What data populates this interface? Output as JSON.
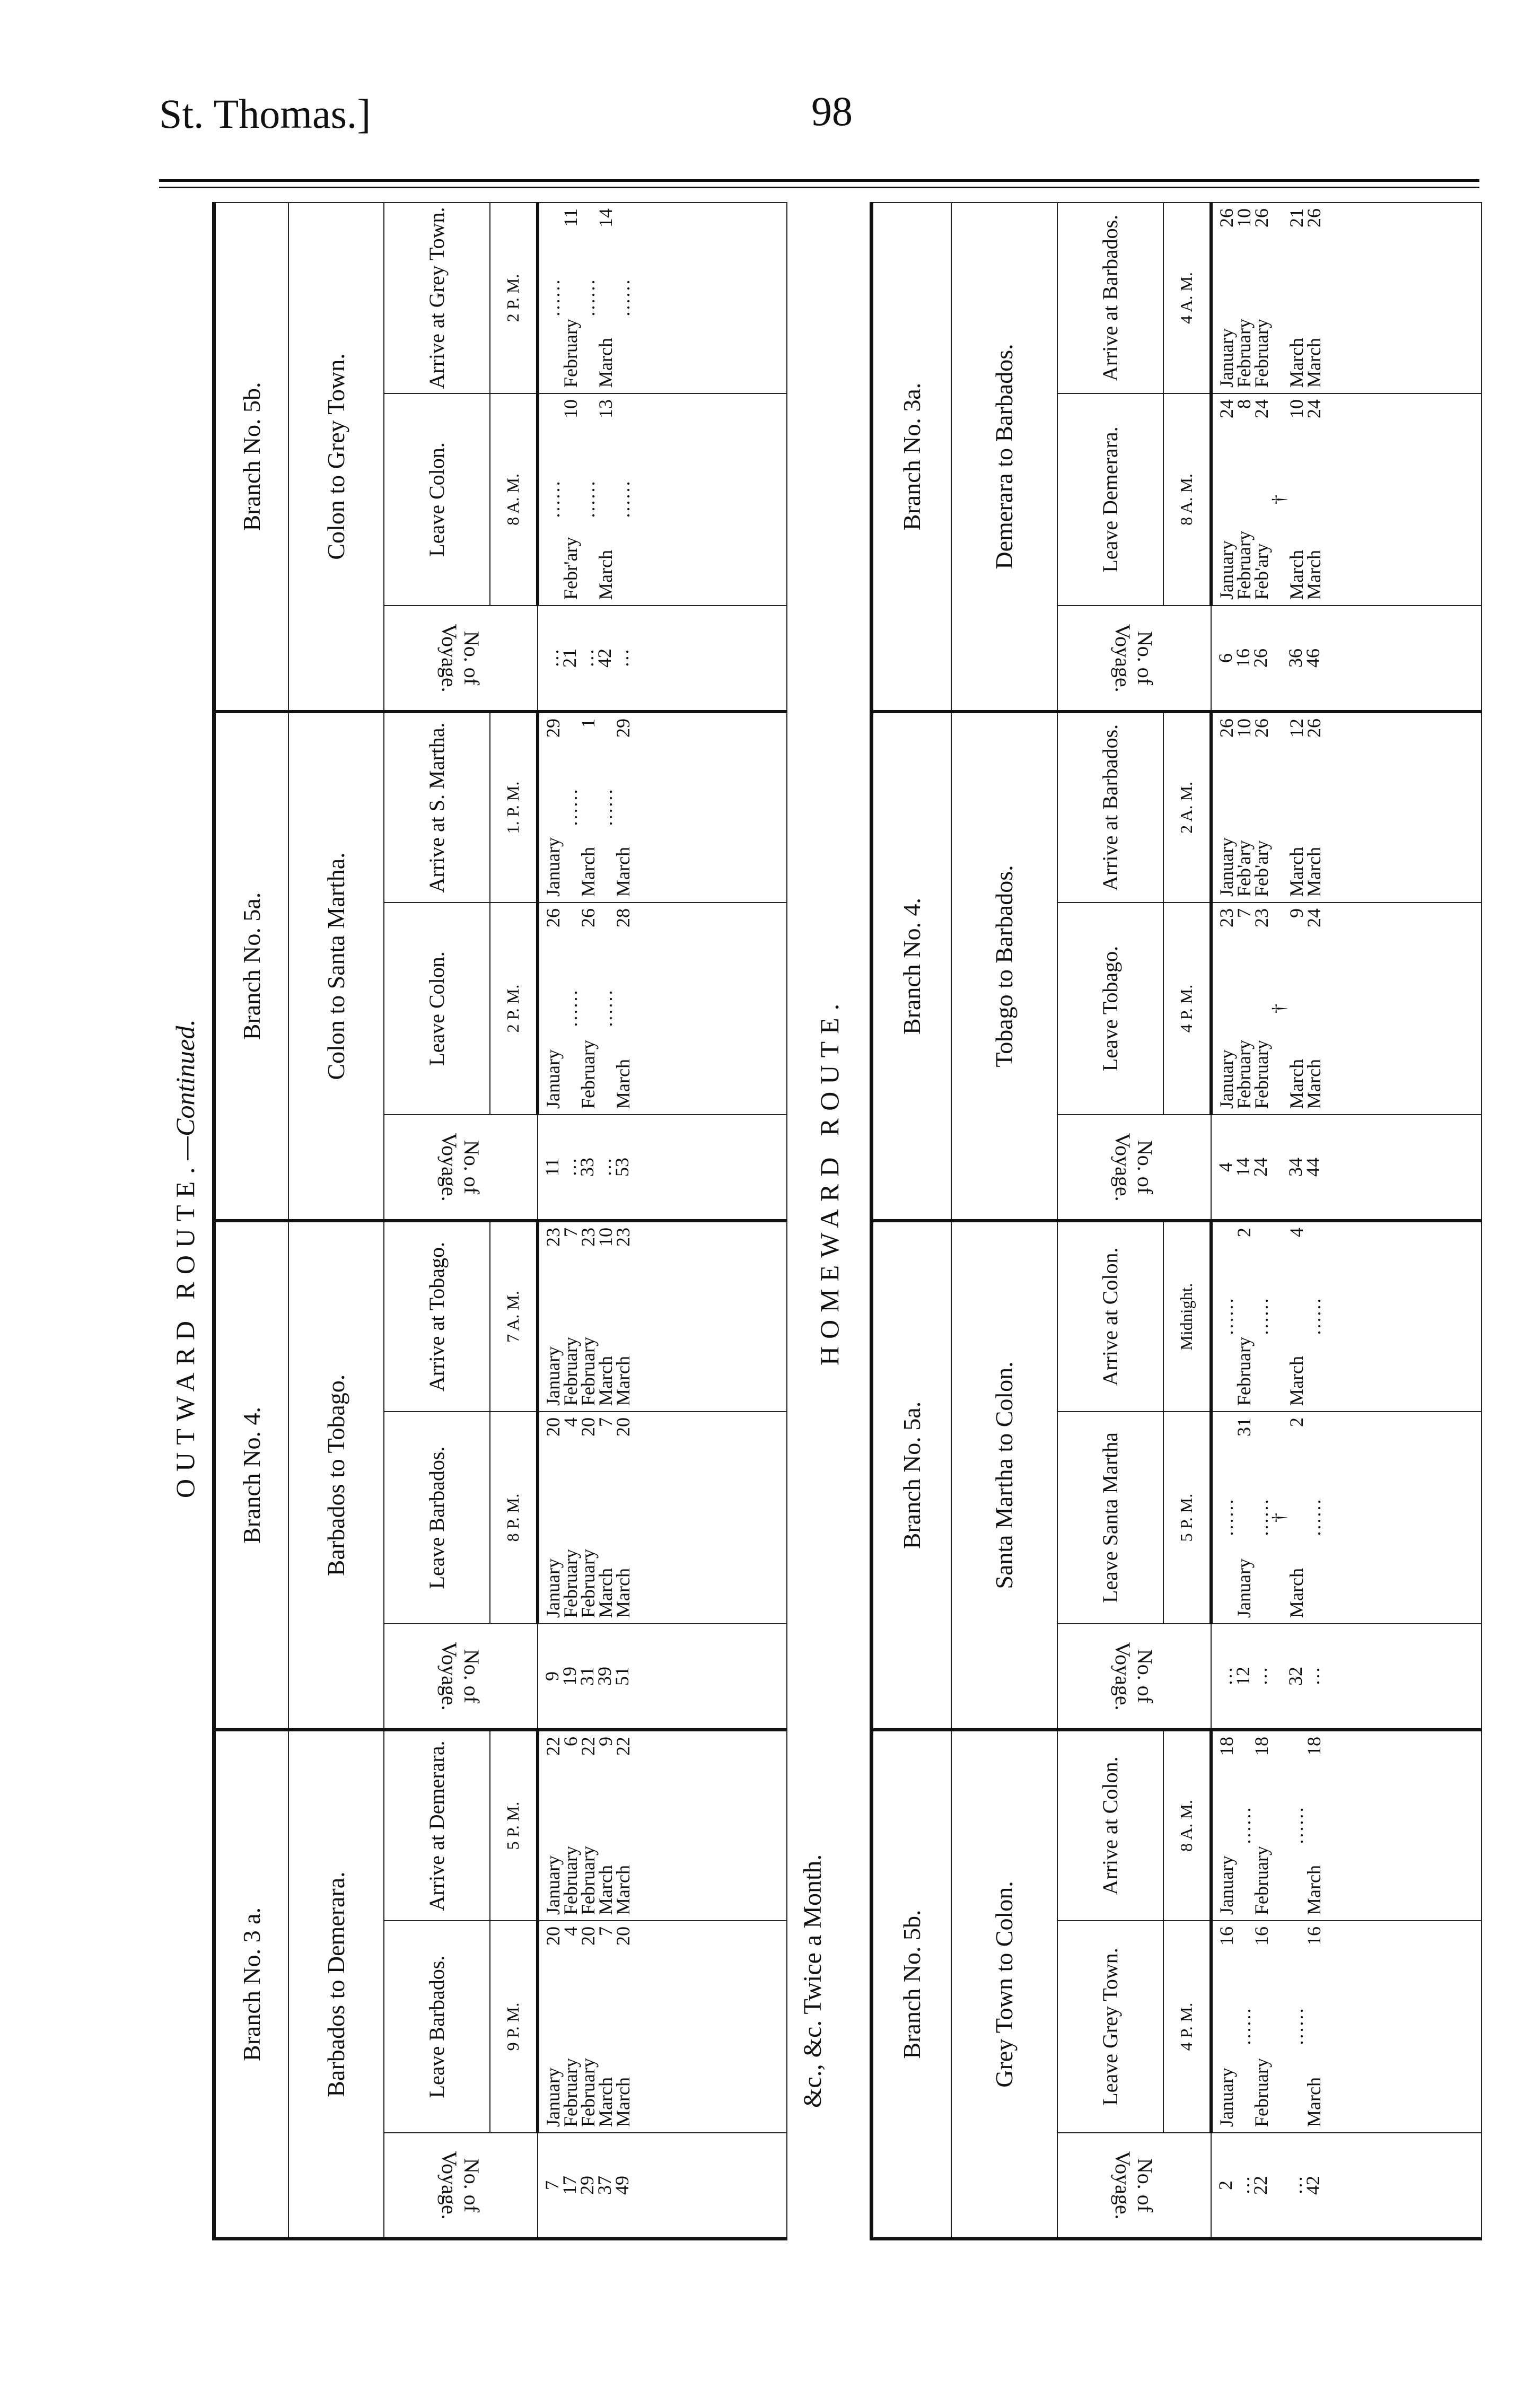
{
  "header": {
    "running_title": "St. Thomas.]",
    "page_number": "98"
  },
  "outward": {
    "caption": "OUTWARD ROUTE.",
    "caption_suffix": "—Continued.",
    "footnote": "&c., &c. Twice a Month.",
    "voyage_label": "No. of Voyage.",
    "branches": [
      {
        "branch": "Branch No. 3 a.",
        "route": "Barbados to Demerara.",
        "leave_label": "Leave Barbados.",
        "arrive_label": "Arrive at Demerara.",
        "leave_time": "9 P. M.",
        "arrive_time": "5 P. M.",
        "rows": [
          [
            "7",
            "January|20",
            "January|22"
          ],
          [
            "17",
            "February|4",
            "February|6"
          ],
          [
            "29",
            "February|20",
            "February|22"
          ],
          [
            "37",
            "March|7",
            "March|9"
          ],
          [
            "49",
            "March|20",
            "March|22"
          ]
        ]
      },
      {
        "branch": "Branch No. 4.",
        "route": "Barbados to Tobago.",
        "leave_label": "Leave Barbados.",
        "arrive_label": "Arrive at Tobago.",
        "leave_time": "8 P. M.",
        "arrive_time": "7 A. M.",
        "rows": [
          [
            "9",
            "January|20",
            "January|23"
          ],
          [
            "19",
            "February|4",
            "February|7"
          ],
          [
            "31",
            "February|20",
            "February|23"
          ],
          [
            "39",
            "March|7",
            "March|10"
          ],
          [
            "51",
            "March|20",
            "March|23"
          ]
        ]
      },
      {
        "branch": "Branch No. 5a.",
        "route": "Colon to Santa Martha.",
        "leave_label": "Leave Colon.",
        "arrive_label": "Arrive at S. Martha.",
        "leave_time": "2 P. M.",
        "arrive_time": "1. P. M.",
        "rows": [
          [
            "11",
            "January|26",
            "January|29"
          ],
          [
            "…",
            "……",
            "……"
          ],
          [
            "33",
            "February|26",
            "March|1"
          ],
          [
            "…",
            "……",
            "……"
          ],
          [
            "53",
            "March|28",
            "March|29"
          ]
        ]
      },
      {
        "branch": "Branch No. 5b.",
        "route": "Colon to Grey Town.",
        "leave_label": "Leave Colon.",
        "arrive_label": "Arrive at Grey Town.",
        "leave_time": "8 A. M.",
        "arrive_time": "2 P. M.",
        "rows": [
          [
            "…",
            "……",
            "……"
          ],
          [
            "21",
            "Febr'ary|10",
            "February|11"
          ],
          [
            "…",
            "……",
            "……"
          ],
          [
            "42",
            "March|13",
            "March|14"
          ],
          [
            "…",
            "……",
            "……"
          ]
        ]
      }
    ]
  },
  "homeward": {
    "caption": "HOMEWARD ROUTE.",
    "voyage_label": "No. of Voyage.",
    "branches": [
      {
        "branch": "Branch No. 5b.",
        "route": "Grey Town to Colon.",
        "leave_label": "Leave Grey Town.",
        "arrive_label": "Arrive at Colon.",
        "leave_time": "4 P. M.",
        "arrive_time": "8 A. M.",
        "rows": [
          [
            "2",
            "January|16",
            "January|18"
          ],
          [
            "…",
            "……",
            "……"
          ],
          [
            "22",
            "February|16",
            "February|18"
          ],
          [
            "",
            "",
            " "
          ],
          [
            "…",
            "……",
            "……"
          ],
          [
            "42",
            "March|16",
            "March|18"
          ]
        ]
      },
      {
        "branch": "Branch No. 5a.",
        "route": "Santa Martha to Colon.",
        "leave_label": "Leave Santa Martha",
        "arrive_label": "Arrive at Colon.",
        "leave_time": "5 P. M.",
        "arrive_time": "Midnight.",
        "rows": [
          [
            "…",
            "……",
            "……"
          ],
          [
            "12",
            "January|31",
            "February|2"
          ],
          [
            "…",
            "……",
            "……"
          ],
          [
            "",
            "†",
            ""
          ],
          [
            "32",
            "March|2",
            "March|4"
          ],
          [
            "…",
            "……",
            "……"
          ]
        ]
      },
      {
        "branch": "Branch No. 4.",
        "route": "Tobago to Barbados.",
        "leave_label": "Leave Tobago.",
        "arrive_label": "Arrive at Barbados.",
        "leave_time": "4 P. M.",
        "arrive_time": "2 A. M.",
        "rows": [
          [
            "4",
            "January|23",
            "January|26"
          ],
          [
            "14",
            "February|7",
            "Feb'ary|10"
          ],
          [
            "24",
            "February|23",
            "Feb'ary|26"
          ],
          [
            "",
            "†",
            ""
          ],
          [
            "34",
            "March|9",
            "March|12"
          ],
          [
            "44",
            "March|24",
            "March|26"
          ]
        ]
      },
      {
        "branch": "Branch No. 3a.",
        "route": "Demerara to Barbados.",
        "leave_label": "Leave Demerara.",
        "arrive_label": "Arrive at Barbados.",
        "leave_time": "8 A. M.",
        "arrive_time": "4 A. M.",
        "rows": [
          [
            "6",
            "January|24",
            "January|26"
          ],
          [
            "16",
            "February|8",
            "February|10"
          ],
          [
            "26",
            "Feb'ary|24",
            "February|26"
          ],
          [
            "",
            "†",
            ""
          ],
          [
            "36",
            "March|10",
            "March|21"
          ],
          [
            "46",
            "March|24",
            "March|26"
          ]
        ]
      }
    ]
  }
}
